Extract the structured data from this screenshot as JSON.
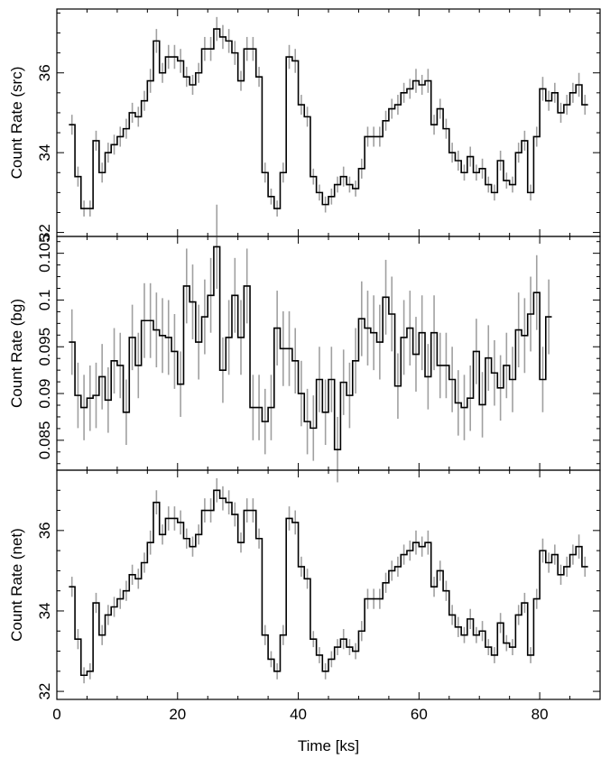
{
  "chart_data": {
    "type": "line",
    "style": "step histogram with error bars",
    "xlabel": "Time [ks]",
    "xlim": [
      0,
      90
    ],
    "xticks": [
      0,
      20,
      40,
      60,
      80
    ],
    "bin_width": 1.0,
    "x": [
      2.5,
      3.5,
      4.5,
      5.5,
      6.5,
      7.5,
      8.5,
      9.5,
      10.5,
      11.5,
      12.5,
      13.5,
      14.5,
      15.5,
      16.5,
      17.5,
      18.5,
      19.5,
      20.5,
      21.5,
      22.5,
      23.5,
      24.5,
      25.5,
      26.5,
      27.5,
      28.5,
      29.5,
      30.5,
      31.5,
      32.5,
      33.5,
      34.5,
      35.5,
      36.5,
      37.5,
      38.5,
      39.5,
      40.5,
      41.5,
      42.5,
      43.5,
      44.5,
      45.5,
      46.5,
      47.5,
      48.5,
      49.5,
      50.5,
      51.5,
      52.5,
      53.5,
      54.5,
      55.5,
      56.5,
      57.5,
      58.5,
      59.5,
      60.5,
      61.5,
      62.5,
      63.5,
      64.5,
      65.5,
      66.5,
      67.5,
      68.5,
      69.5,
      70.5,
      71.5,
      72.5,
      73.5,
      74.5,
      75.5,
      76.5,
      77.5,
      78.5,
      79.5,
      80.5,
      81.5,
      82.5,
      83.5,
      84.5,
      85.5,
      86.5,
      87.5
    ],
    "panels": [
      {
        "ylabel": "Count Rate (src)",
        "ylim": [
          31.9,
          37.6
        ],
        "yticks": [
          32,
          34,
          36
        ],
        "yticklabels": [
          "32",
          "34",
          "36"
        ],
        "values": [
          34.7,
          33.4,
          32.6,
          32.6,
          34.3,
          33.5,
          34.0,
          34.2,
          34.4,
          34.6,
          35.0,
          34.9,
          35.3,
          35.8,
          36.8,
          36.0,
          36.4,
          36.4,
          36.3,
          35.9,
          35.7,
          36.0,
          36.6,
          36.6,
          37.1,
          36.9,
          36.8,
          36.5,
          35.8,
          36.6,
          36.6,
          35.9,
          33.5,
          32.9,
          32.6,
          33.5,
          36.4,
          36.3,
          35.2,
          34.9,
          33.4,
          33.0,
          32.7,
          32.9,
          33.2,
          33.4,
          33.2,
          33.1,
          33.6,
          34.4,
          34.4,
          34.4,
          34.8,
          35.1,
          35.2,
          35.5,
          35.6,
          35.8,
          35.7,
          35.8,
          34.7,
          35.1,
          34.6,
          34.0,
          33.8,
          33.5,
          33.9,
          33.5,
          33.6,
          33.2,
          33.0,
          33.8,
          33.3,
          33.2,
          34.0,
          34.3,
          33.0,
          34.4,
          35.6,
          35.3,
          35.5,
          35.0,
          35.2,
          35.5,
          35.7,
          35.2
        ],
        "errors": [
          0.25,
          0.25,
          0.2,
          0.2,
          0.25,
          0.25,
          0.25,
          0.25,
          0.25,
          0.25,
          0.25,
          0.25,
          0.25,
          0.3,
          0.3,
          0.25,
          0.3,
          0.3,
          0.3,
          0.25,
          0.25,
          0.25,
          0.3,
          0.3,
          0.3,
          0.3,
          0.3,
          0.3,
          0.25,
          0.3,
          0.3,
          0.25,
          0.25,
          0.2,
          0.2,
          0.25,
          0.3,
          0.3,
          0.25,
          0.25,
          0.2,
          0.2,
          0.2,
          0.2,
          0.2,
          0.25,
          0.2,
          0.2,
          0.25,
          0.25,
          0.25,
          0.25,
          0.25,
          0.25,
          0.25,
          0.25,
          0.25,
          0.3,
          0.25,
          0.3,
          0.25,
          0.25,
          0.25,
          0.25,
          0.25,
          0.2,
          0.25,
          0.2,
          0.25,
          0.2,
          0.2,
          0.25,
          0.2,
          0.2,
          0.25,
          0.25,
          0.2,
          0.25,
          0.3,
          0.25,
          0.25,
          0.25,
          0.25,
          0.25,
          0.3,
          0.25
        ]
      },
      {
        "ylabel": "Count Rate (bg)",
        "ylim": [
          0.0818,
          0.1068
        ],
        "yticks": [
          0.085,
          0.09,
          0.095,
          0.1,
          0.105
        ],
        "yticklabels": [
          "0.085",
          "0.09",
          "0.095",
          "0.1",
          "0.105"
        ],
        "values": [
          0.0955,
          0.0898,
          0.0885,
          0.0895,
          0.0898,
          0.0918,
          0.0893,
          0.0935,
          0.093,
          0.088,
          0.096,
          0.093,
          0.0978,
          0.0978,
          0.0968,
          0.0962,
          0.096,
          0.0945,
          0.091,
          0.1015,
          0.0998,
          0.0955,
          0.0982,
          0.1005,
          0.1057,
          0.0925,
          0.096,
          0.1005,
          0.096,
          0.1015,
          0.0885,
          0.0885,
          0.087,
          0.0885,
          0.097,
          0.0948,
          0.0948,
          0.0935,
          0.09,
          0.087,
          0.0863,
          0.0915,
          0.088,
          0.0915,
          0.084,
          0.0912,
          0.0898,
          0.0935,
          0.098,
          0.097,
          0.0965,
          0.0955,
          0.1003,
          0.0985,
          0.0908,
          0.096,
          0.097,
          0.0942,
          0.0965,
          0.0918,
          0.0965,
          0.093,
          0.093,
          0.0915,
          0.089,
          0.0885,
          0.0895,
          0.0945,
          0.0888,
          0.0938,
          0.0922,
          0.0906,
          0.093,
          0.0915,
          0.0968,
          0.0962,
          0.0985,
          0.1008,
          0.0915,
          0.0982
        ],
        "errors": [
          0.0035,
          0.0035,
          0.0035,
          0.0035,
          0.0035,
          0.0035,
          0.0035,
          0.0035,
          0.0035,
          0.0035,
          0.0035,
          0.0035,
          0.004,
          0.004,
          0.004,
          0.004,
          0.004,
          0.004,
          0.0035,
          0.004,
          0.004,
          0.004,
          0.004,
          0.004,
          0.0045,
          0.0035,
          0.004,
          0.004,
          0.004,
          0.004,
          0.0035,
          0.0035,
          0.0035,
          0.0035,
          0.004,
          0.004,
          0.004,
          0.0035,
          0.0035,
          0.0035,
          0.0035,
          0.0035,
          0.0035,
          0.0035,
          0.0035,
          0.0035,
          0.0035,
          0.0035,
          0.004,
          0.004,
          0.004,
          0.004,
          0.004,
          0.004,
          0.0035,
          0.004,
          0.004,
          0.004,
          0.004,
          0.0035,
          0.004,
          0.0035,
          0.0035,
          0.0035,
          0.0035,
          0.0035,
          0.0035,
          0.0035,
          0.0035,
          0.0035,
          0.0035,
          0.0035,
          0.0035,
          0.0035,
          0.004,
          0.004,
          0.004,
          0.004,
          0.0035,
          0.004
        ],
        "x_subset_start": 2.5
      },
      {
        "ylabel": "Count Rate (net)",
        "ylim": [
          31.8,
          37.5
        ],
        "yticks": [
          32,
          34,
          36
        ],
        "yticklabels": [
          "32",
          "34",
          "36"
        ],
        "values": [
          34.6,
          33.3,
          32.4,
          32.5,
          34.2,
          33.4,
          33.9,
          34.1,
          34.3,
          34.5,
          34.9,
          34.8,
          35.2,
          35.7,
          36.7,
          35.9,
          36.3,
          36.3,
          36.2,
          35.8,
          35.6,
          35.9,
          36.5,
          36.5,
          37.0,
          36.8,
          36.7,
          36.4,
          35.7,
          36.5,
          36.5,
          35.8,
          33.4,
          32.8,
          32.5,
          33.4,
          36.3,
          36.2,
          35.1,
          34.8,
          33.3,
          32.9,
          32.5,
          32.8,
          33.1,
          33.3,
          33.1,
          33.0,
          33.5,
          34.3,
          34.3,
          34.3,
          34.7,
          35.0,
          35.1,
          35.4,
          35.5,
          35.7,
          35.6,
          35.7,
          34.6,
          35.0,
          34.5,
          33.9,
          33.6,
          33.4,
          33.8,
          33.4,
          33.5,
          33.1,
          32.9,
          33.7,
          33.2,
          33.1,
          33.9,
          34.2,
          32.9,
          34.3,
          35.5,
          35.2,
          35.4,
          34.9,
          35.1,
          35.4,
          35.6,
          35.1
        ],
        "errors": [
          0.25,
          0.25,
          0.2,
          0.2,
          0.25,
          0.25,
          0.25,
          0.25,
          0.25,
          0.25,
          0.25,
          0.25,
          0.25,
          0.3,
          0.3,
          0.25,
          0.3,
          0.3,
          0.3,
          0.25,
          0.25,
          0.25,
          0.3,
          0.3,
          0.3,
          0.3,
          0.3,
          0.3,
          0.25,
          0.3,
          0.3,
          0.25,
          0.25,
          0.2,
          0.2,
          0.25,
          0.3,
          0.3,
          0.25,
          0.25,
          0.2,
          0.2,
          0.2,
          0.2,
          0.2,
          0.25,
          0.2,
          0.2,
          0.25,
          0.25,
          0.25,
          0.25,
          0.25,
          0.25,
          0.25,
          0.25,
          0.25,
          0.3,
          0.25,
          0.3,
          0.25,
          0.25,
          0.25,
          0.25,
          0.25,
          0.2,
          0.25,
          0.2,
          0.25,
          0.2,
          0.2,
          0.25,
          0.2,
          0.2,
          0.25,
          0.25,
          0.2,
          0.25,
          0.3,
          0.25,
          0.25,
          0.25,
          0.25,
          0.25,
          0.3,
          0.25
        ]
      }
    ],
    "colors": {
      "step_line": "#000000",
      "error_bar": "#a0a0a0",
      "axis": "#000000"
    },
    "grid": false,
    "legend": false
  }
}
